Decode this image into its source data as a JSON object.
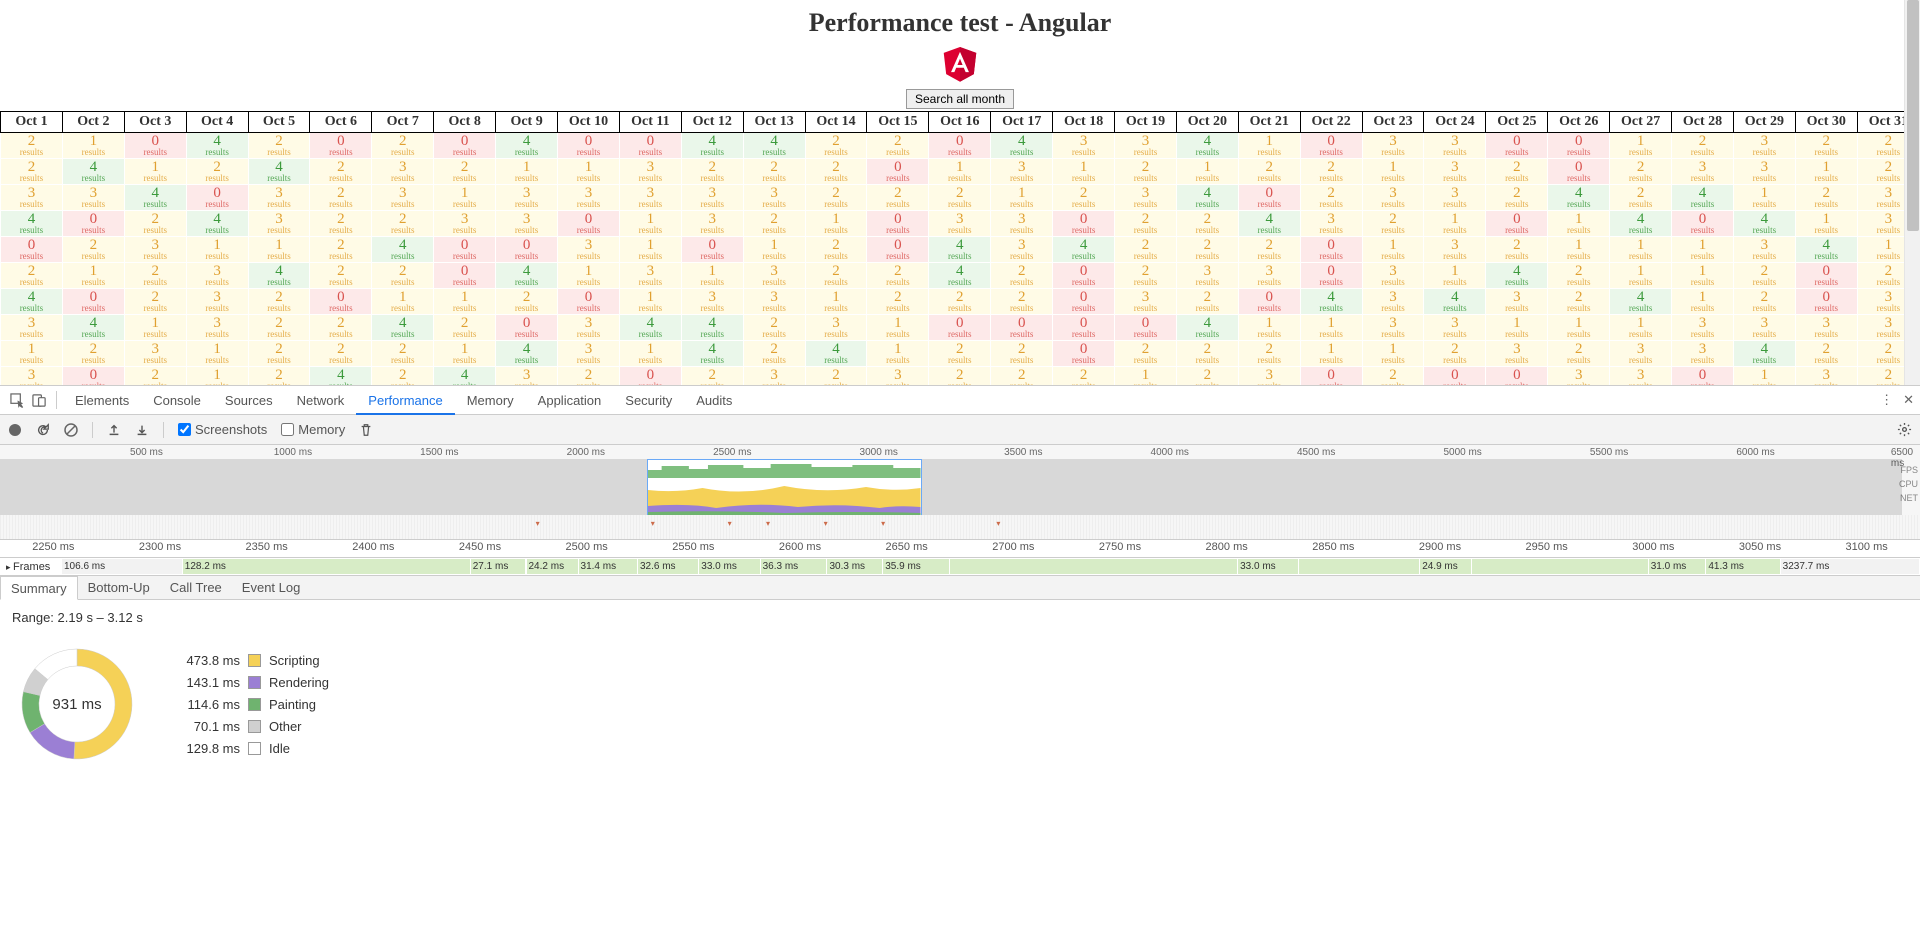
{
  "page": {
    "title": "Performance test - Angular",
    "search_btn": "Search all month",
    "results_word": "results"
  },
  "colors": {
    "v0_bg": "#fde9e9",
    "v0_fg": "#d9534f",
    "v123_bg": "#fffbe6",
    "v123_fg": "#e0a030",
    "v4_bg": "#eaf7ea",
    "v4_fg": "#3c9a3c",
    "angular_red": "#dd0031",
    "angular_dark": "#c3002f"
  },
  "days": [
    "Oct 1",
    "Oct 2",
    "Oct 3",
    "Oct 4",
    "Oct 5",
    "Oct 6",
    "Oct 7",
    "Oct 8",
    "Oct 9",
    "Oct 10",
    "Oct 11",
    "Oct 12",
    "Oct 13",
    "Oct 14",
    "Oct 15",
    "Oct 16",
    "Oct 17",
    "Oct 18",
    "Oct 19",
    "Oct 20",
    "Oct 21",
    "Oct 22",
    "Oct 23",
    "Oct 24",
    "Oct 25",
    "Oct 26",
    "Oct 27",
    "Oct 28",
    "Oct 29",
    "Oct 30",
    "Oct 31"
  ],
  "grid": [
    [
      2,
      1,
      0,
      4,
      2,
      0,
      2,
      0,
      4,
      0,
      0,
      4,
      4,
      2,
      2,
      0,
      4,
      3,
      3,
      4,
      1,
      0,
      3,
      3,
      0,
      0,
      1,
      2,
      3,
      2,
      2
    ],
    [
      2,
      4,
      1,
      2,
      4,
      2,
      3,
      2,
      1,
      1,
      3,
      2,
      2,
      2,
      0,
      1,
      3,
      1,
      2,
      1,
      2,
      2,
      1,
      3,
      2,
      0,
      2,
      3,
      3,
      1,
      2
    ],
    [
      3,
      3,
      4,
      0,
      3,
      2,
      3,
      1,
      3,
      3,
      3,
      3,
      3,
      2,
      2,
      2,
      1,
      2,
      3,
      4,
      0,
      2,
      3,
      3,
      2,
      4,
      2,
      4,
      1,
      2,
      3
    ],
    [
      4,
      0,
      2,
      4,
      3,
      2,
      2,
      3,
      3,
      0,
      1,
      3,
      2,
      1,
      0,
      3,
      3,
      0,
      2,
      2,
      4,
      3,
      2,
      1,
      0,
      1,
      4,
      0,
      4,
      1,
      3
    ],
    [
      0,
      2,
      3,
      1,
      1,
      2,
      4,
      0,
      0,
      3,
      1,
      0,
      1,
      2,
      0,
      4,
      3,
      4,
      2,
      2,
      2,
      0,
      1,
      3,
      2,
      1,
      1,
      1,
      3,
      4,
      1
    ],
    [
      2,
      1,
      2,
      3,
      4,
      2,
      2,
      0,
      4,
      1,
      3,
      1,
      3,
      2,
      2,
      4,
      2,
      0,
      2,
      3,
      3,
      0,
      3,
      1,
      4,
      2,
      1,
      1,
      2,
      0,
      2
    ],
    [
      4,
      0,
      2,
      3,
      2,
      0,
      1,
      1,
      2,
      0,
      1,
      3,
      3,
      1,
      2,
      2,
      2,
      0,
      3,
      2,
      0,
      4,
      3,
      4,
      3,
      2,
      4,
      1,
      2,
      0,
      3
    ],
    [
      3,
      4,
      1,
      3,
      2,
      2,
      4,
      2,
      0,
      3,
      4,
      4,
      2,
      3,
      1,
      0,
      0,
      0,
      0,
      4,
      1,
      1,
      3,
      3,
      1,
      1,
      1,
      3,
      3,
      3,
      3
    ],
    [
      1,
      2,
      3,
      1,
      2,
      2,
      2,
      1,
      4,
      3,
      1,
      4,
      2,
      4,
      1,
      2,
      2,
      0,
      2,
      2,
      2,
      1,
      1,
      2,
      3,
      2,
      3,
      3,
      4,
      2,
      2
    ],
    [
      3,
      0,
      2,
      1,
      2,
      4,
      2,
      4,
      3,
      2,
      0,
      2,
      3,
      2,
      3,
      2,
      2,
      2,
      1,
      2,
      3,
      0,
      2,
      0,
      0,
      3,
      3,
      0,
      1,
      3,
      2
    ]
  ],
  "devtools": {
    "tabs": [
      "Elements",
      "Console",
      "Sources",
      "Network",
      "Performance",
      "Memory",
      "Application",
      "Security",
      "Audits"
    ],
    "active_tab": "Performance",
    "toolbar": {
      "screenshots_label": "Screenshots",
      "memory_label": "Memory",
      "screenshots_checked": true,
      "memory_checked": false
    },
    "overview": {
      "ticks": [
        {
          "ms": 500,
          "pct": 7.7
        },
        {
          "ms": 1000,
          "pct": 15.4
        },
        {
          "ms": 1500,
          "pct": 23.1
        },
        {
          "ms": 2000,
          "pct": 30.8
        },
        {
          "ms": 2500,
          "pct": 38.5
        },
        {
          "ms": 3000,
          "pct": 46.2
        },
        {
          "ms": 3500,
          "pct": 53.8
        },
        {
          "ms": 4000,
          "pct": 61.5
        },
        {
          "ms": 4500,
          "pct": 69.2
        },
        {
          "ms": 5000,
          "pct": 76.9
        },
        {
          "ms": 5500,
          "pct": 84.6
        },
        {
          "ms": 6000,
          "pct": 92.3
        },
        {
          "ms": 6500,
          "pct": 100
        }
      ],
      "sel_start_pct": 33.7,
      "sel_end_pct": 48.0,
      "labels": [
        "FPS",
        "CPU",
        "NET"
      ],
      "markers": [
        {
          "pct": 28
        },
        {
          "pct": 34
        },
        {
          "pct": 38
        },
        {
          "pct": 40
        },
        {
          "pct": 43
        },
        {
          "pct": 46
        },
        {
          "pct": 52
        }
      ]
    },
    "detail": {
      "ticks": [
        "2250 ms",
        "2300 ms",
        "2350 ms",
        "2400 ms",
        "2450 ms",
        "2500 ms",
        "2550 ms",
        "2600 ms",
        "2650 ms",
        "2700 ms",
        "2750 ms",
        "2800 ms",
        "2850 ms",
        "2900 ms",
        "2950 ms",
        "3000 ms",
        "3050 ms",
        "3100 ms"
      ],
      "frames_label": "Frames",
      "frames": [
        {
          "label": "106.6 ms",
          "start": 0,
          "width": 6.5,
          "idle": true
        },
        {
          "label": "128.2 ms",
          "start": 6.5,
          "width": 15.5
        },
        {
          "label": "27.1 ms",
          "start": 22,
          "width": 3
        },
        {
          "label": "24.2 ms",
          "start": 25,
          "width": 2.8
        },
        {
          "label": "31.4 ms",
          "start": 27.8,
          "width": 3.2
        },
        {
          "label": "32.6 ms",
          "start": 31,
          "width": 3.3
        },
        {
          "label": "33.0 ms",
          "start": 34.3,
          "width": 3.3
        },
        {
          "label": "36.3 ms",
          "start": 37.6,
          "width": 3.6
        },
        {
          "label": "30.3 ms",
          "start": 41.2,
          "width": 3
        },
        {
          "label": "35.9 ms",
          "start": 44.2,
          "width": 3.6
        },
        {
          "label": "",
          "start": 47.8,
          "width": 15.5
        },
        {
          "label": "33.0 ms",
          "start": 63.3,
          "width": 3.3
        },
        {
          "label": "",
          "start": 66.6,
          "width": 6.5
        },
        {
          "label": "24.9 ms",
          "start": 73.1,
          "width": 2.8
        },
        {
          "label": "",
          "start": 75.9,
          "width": 9.5
        },
        {
          "label": "31.0 ms",
          "start": 85.4,
          "width": 3.1
        },
        {
          "label": "41.3 ms",
          "start": 88.5,
          "width": 4
        },
        {
          "label": "3237.7 ms",
          "start": 92.5,
          "width": 7.5,
          "idle": true
        }
      ]
    },
    "sub_tabs": [
      "Summary",
      "Bottom-Up",
      "Call Tree",
      "Event Log"
    ],
    "active_sub": "Summary",
    "summary": {
      "range": "Range: 2.19 s – 3.12 s",
      "total_ms": "931 ms",
      "items": [
        {
          "ms": "473.8 ms",
          "label": "Scripting",
          "color": "#f5d157"
        },
        {
          "ms": "143.1 ms",
          "label": "Rendering",
          "color": "#9b7fd4"
        },
        {
          "ms": "114.6 ms",
          "label": "Painting",
          "color": "#6fb36f"
        },
        {
          "ms": "70.1 ms",
          "label": "Other",
          "color": "#d0d0d0"
        },
        {
          "ms": "129.8 ms",
          "label": "Idle",
          "color": "#ffffff"
        }
      ],
      "donut": [
        {
          "color": "#f5d157",
          "frac": 0.509
        },
        {
          "color": "#9b7fd4",
          "frac": 0.154
        },
        {
          "color": "#6fb36f",
          "frac": 0.123
        },
        {
          "color": "#d0d0d0",
          "frac": 0.075
        },
        {
          "color": "#ffffff",
          "frac": 0.139
        }
      ]
    }
  }
}
